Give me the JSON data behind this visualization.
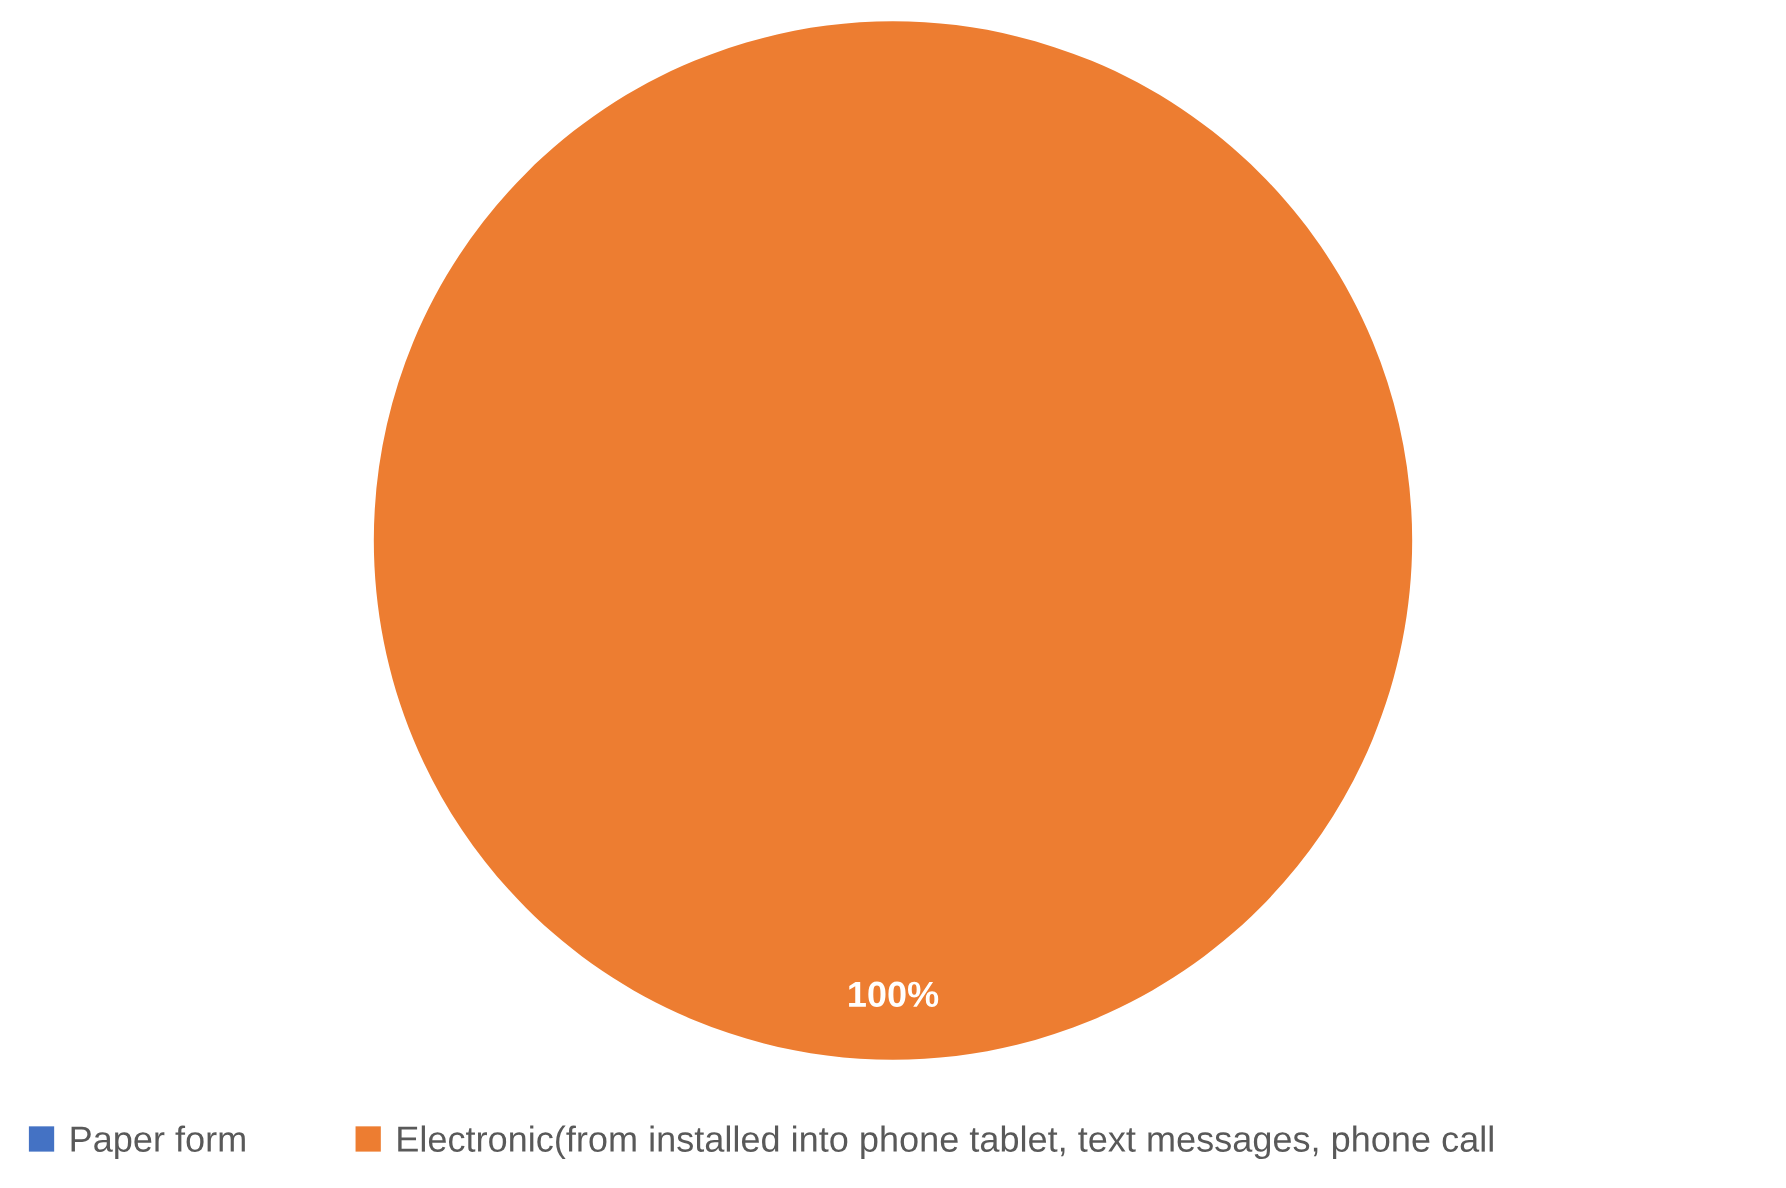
{
  "chart_data": {
    "type": "pie",
    "categories": [
      "Paper form",
      "Electronic(from installed into phone tablet, text messages, phone call"
    ],
    "values": [
      0,
      100
    ],
    "colors": [
      "#4472c4",
      "#ed7d31"
    ],
    "value_labels": [
      null,
      "100%"
    ],
    "legend": "bottom"
  }
}
